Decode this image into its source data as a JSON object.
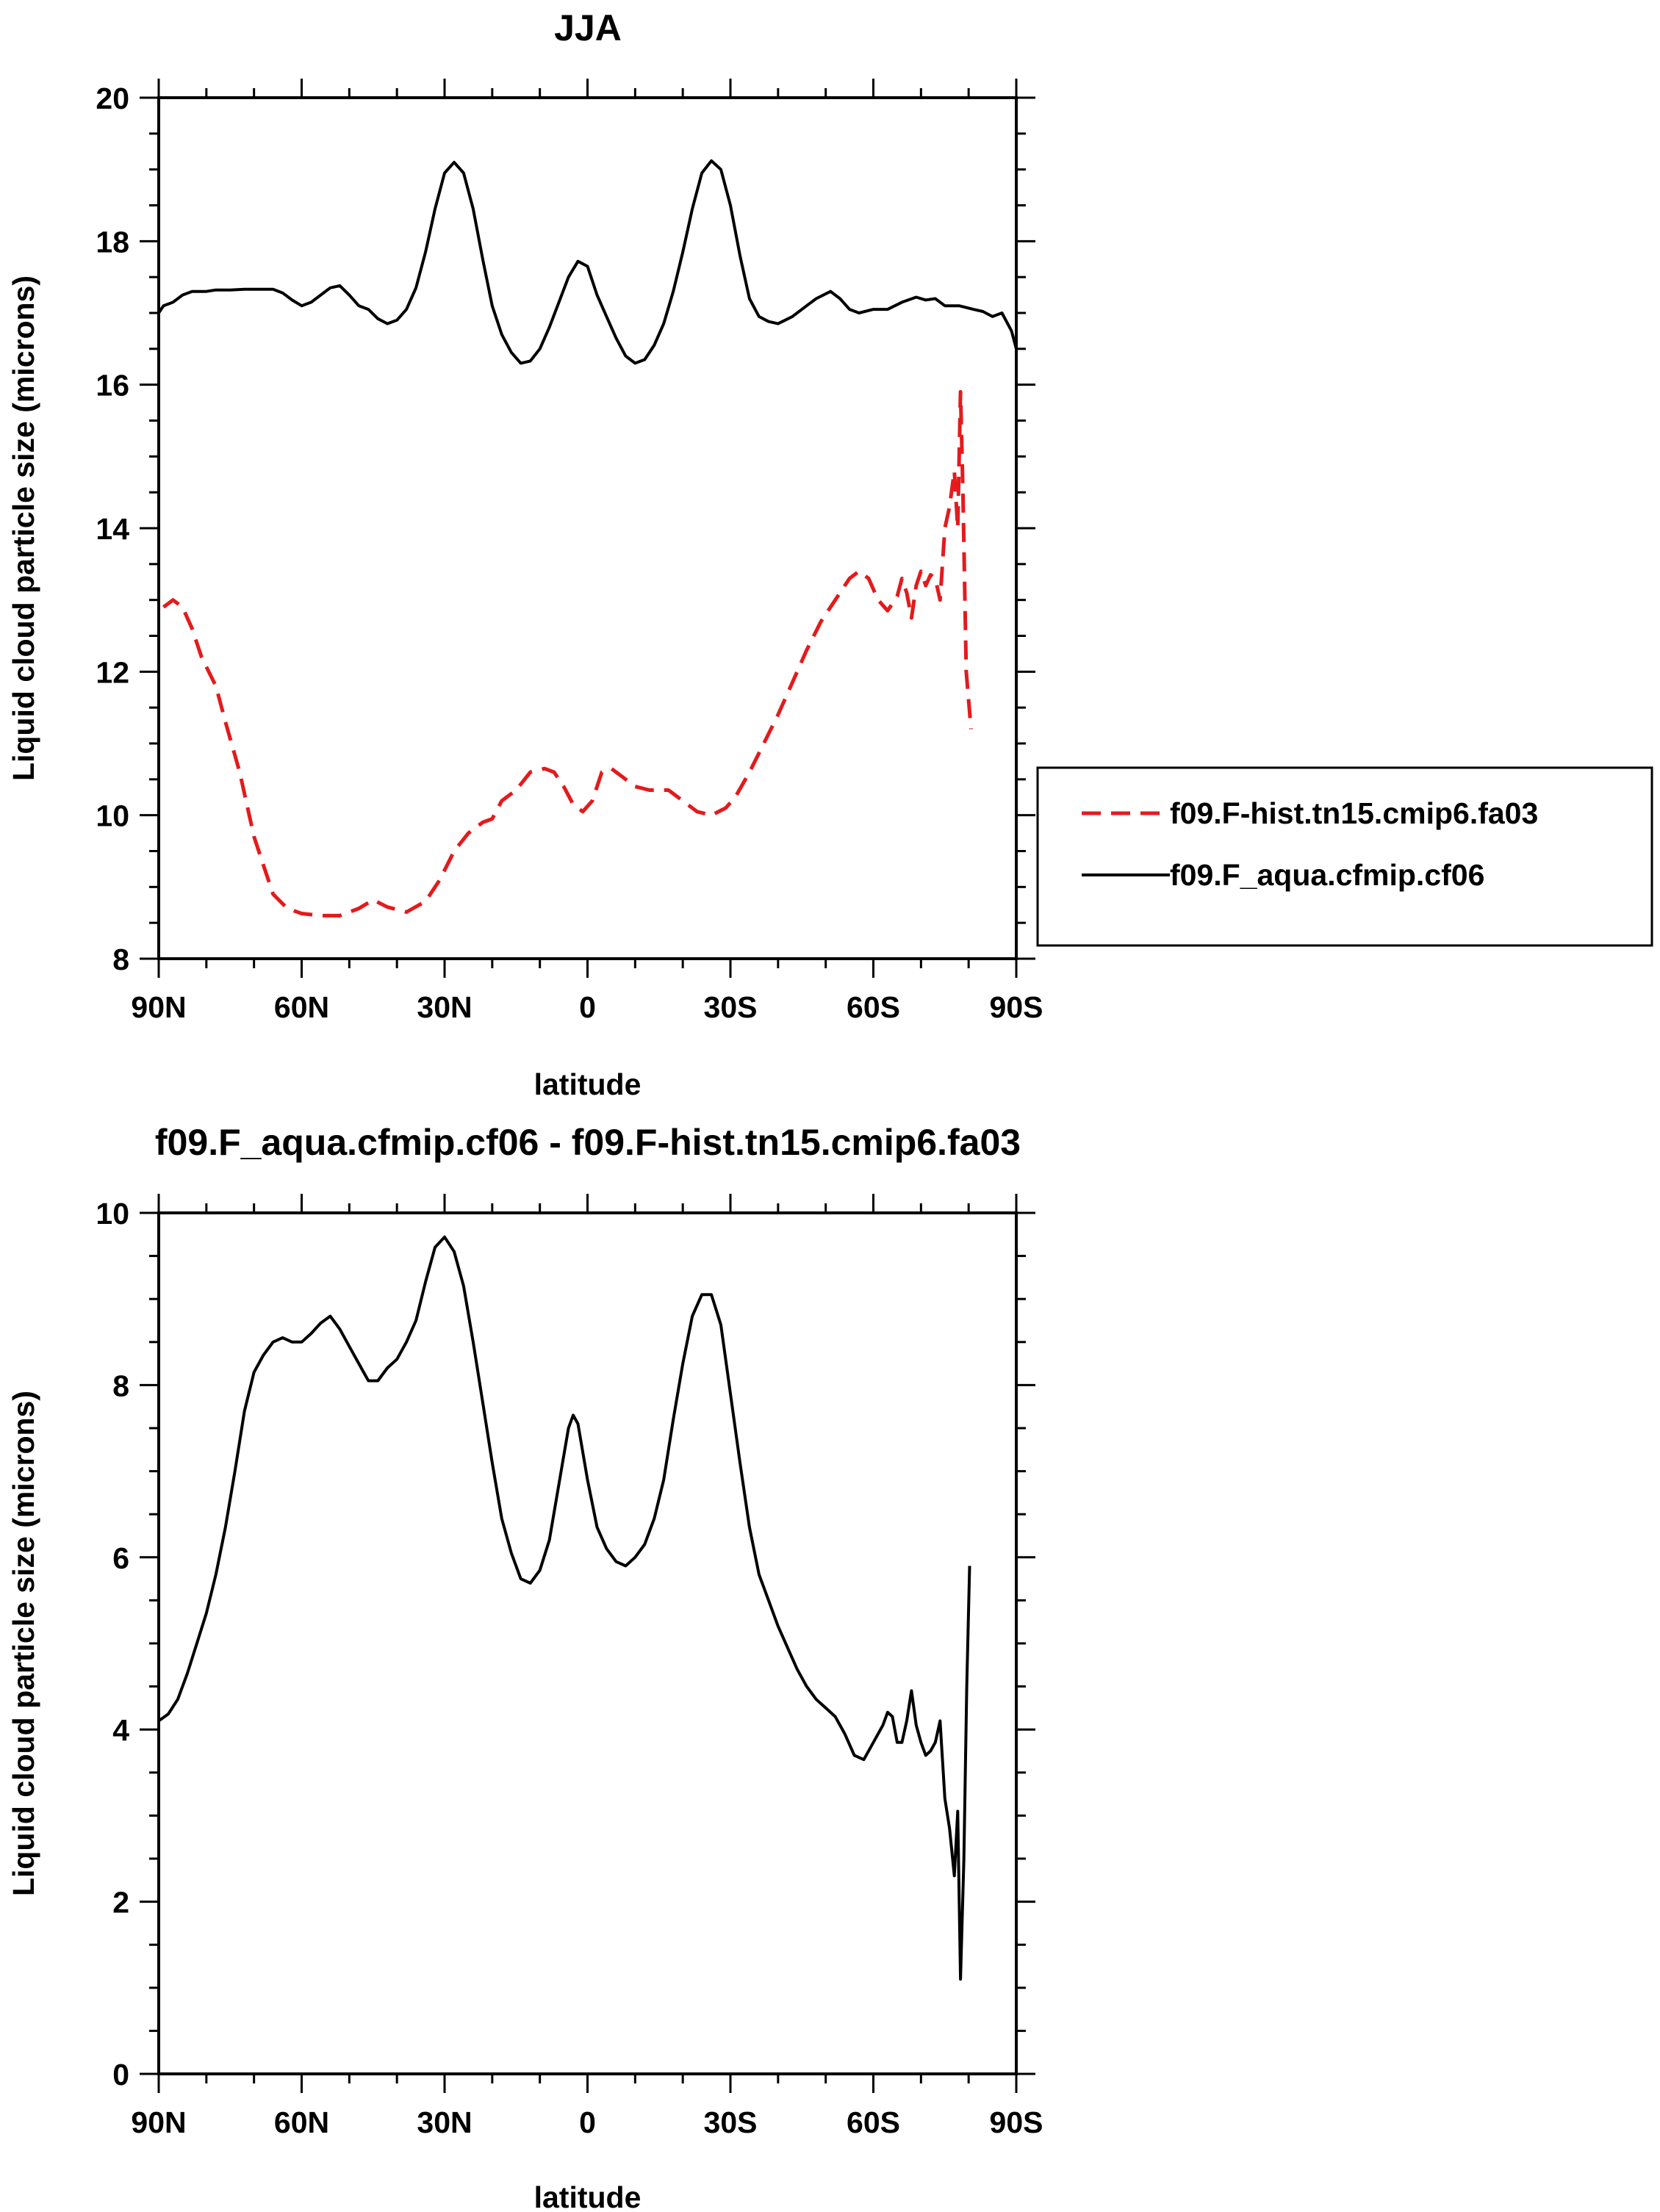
{
  "chart_data": [
    {
      "type": "line",
      "title": "JJA",
      "xlabel": "latitude",
      "ylabel": "Liquid cloud particle size (microns)",
      "xlim": [
        90,
        -90
      ],
      "ylim": [
        8,
        20
      ],
      "yticks": [
        8,
        10,
        12,
        14,
        16,
        18,
        20
      ],
      "xticks": [
        {
          "value": 90,
          "label": "90N"
        },
        {
          "value": 60,
          "label": "60N"
        },
        {
          "value": 30,
          "label": "30N"
        },
        {
          "value": 0,
          "label": "0"
        },
        {
          "value": -30,
          "label": "30S"
        },
        {
          "value": -60,
          "label": "60S"
        },
        {
          "value": -90,
          "label": "90S"
        }
      ],
      "legend": "right",
      "series": [
        {
          "name": "f09.F-hist.tn15.cmip6.fa03",
          "color": "#e41a1c",
          "dash": "dashed",
          "points": [
            [
              89,
              12.9
            ],
            [
              87,
              13.0
            ],
            [
              85,
              12.9
            ],
            [
              83,
              12.6
            ],
            [
              81,
              12.2
            ],
            [
              78,
              11.8
            ],
            [
              76,
              11.3
            ],
            [
              73,
              10.6
            ],
            [
              70,
              9.7
            ],
            [
              68,
              9.3
            ],
            [
              66,
              8.9
            ],
            [
              63,
              8.7
            ],
            [
              60,
              8.63
            ],
            [
              56,
              8.6
            ],
            [
              52,
              8.6
            ],
            [
              48,
              8.7
            ],
            [
              45,
              8.82
            ],
            [
              42,
              8.72
            ],
            [
              38,
              8.65
            ],
            [
              34,
              8.8
            ],
            [
              31,
              9.1
            ],
            [
              28,
              9.5
            ],
            [
              25,
              9.75
            ],
            [
              22,
              9.9
            ],
            [
              20,
              9.95
            ],
            [
              18,
              10.2
            ],
            [
              15,
              10.35
            ],
            [
              12,
              10.6
            ],
            [
              9,
              10.65
            ],
            [
              7,
              10.6
            ],
            [
              5,
              10.4
            ],
            [
              3,
              10.15
            ],
            [
              1,
              10.05
            ],
            [
              -1,
              10.2
            ],
            [
              -3,
              10.6
            ],
            [
              -5,
              10.65
            ],
            [
              -7,
              10.55
            ],
            [
              -10,
              10.4
            ],
            [
              -13,
              10.35
            ],
            [
              -17,
              10.35
            ],
            [
              -20,
              10.2
            ],
            [
              -23,
              10.05
            ],
            [
              -26,
              10.0
            ],
            [
              -29,
              10.1
            ],
            [
              -31,
              10.25
            ],
            [
              -34,
              10.6
            ],
            [
              -37,
              11.0
            ],
            [
              -40,
              11.4
            ],
            [
              -43,
              11.85
            ],
            [
              -46,
              12.3
            ],
            [
              -49,
              12.7
            ],
            [
              -52,
              13.0
            ],
            [
              -55,
              13.3
            ],
            [
              -57,
              13.4
            ],
            [
              -59,
              13.3
            ],
            [
              -61,
              13.0
            ],
            [
              -63,
              12.85
            ],
            [
              -65,
              13.05
            ],
            [
              -66,
              13.3
            ],
            [
              -67,
              13.1
            ],
            [
              -68,
              12.75
            ],
            [
              -69,
              13.2
            ],
            [
              -70,
              13.4
            ],
            [
              -71,
              13.2
            ],
            [
              -72,
              13.35
            ],
            [
              -73,
              13.3
            ],
            [
              -74,
              13.0
            ],
            [
              -75,
              14.0
            ],
            [
              -76,
              14.3
            ],
            [
              -77,
              14.8
            ],
            [
              -77.7,
              14.0
            ],
            [
              -78.3,
              15.9
            ],
            [
              -78.8,
              14.5
            ],
            [
              -79.5,
              12.0
            ],
            [
              -80.5,
              11.2
            ]
          ]
        },
        {
          "name": "f09.F_aqua.cfmip.cf06",
          "color": "#000000",
          "dash": "solid",
          "points": [
            [
              90,
              17.0
            ],
            [
              89,
              17.1
            ],
            [
              87,
              17.15
            ],
            [
              85,
              17.25
            ],
            [
              83,
              17.3
            ],
            [
              80,
              17.3
            ],
            [
              78,
              17.32
            ],
            [
              75,
              17.32
            ],
            [
              72,
              17.33
            ],
            [
              69,
              17.33
            ],
            [
              66,
              17.33
            ],
            [
              64,
              17.28
            ],
            [
              62,
              17.18
            ],
            [
              60,
              17.1
            ],
            [
              58,
              17.15
            ],
            [
              56,
              17.25
            ],
            [
              54,
              17.35
            ],
            [
              52,
              17.38
            ],
            [
              50,
              17.25
            ],
            [
              48,
              17.1
            ],
            [
              46,
              17.05
            ],
            [
              44,
              16.92
            ],
            [
              42,
              16.85
            ],
            [
              40,
              16.9
            ],
            [
              38,
              17.05
            ],
            [
              36,
              17.35
            ],
            [
              34,
              17.85
            ],
            [
              32,
              18.45
            ],
            [
              30,
              18.95
            ],
            [
              28,
              19.1
            ],
            [
              26,
              18.95
            ],
            [
              24,
              18.45
            ],
            [
              22,
              17.75
            ],
            [
              20,
              17.1
            ],
            [
              18,
              16.7
            ],
            [
              16,
              16.45
            ],
            [
              14,
              16.3
            ],
            [
              12,
              16.33
            ],
            [
              10,
              16.5
            ],
            [
              8,
              16.8
            ],
            [
              6,
              17.15
            ],
            [
              4,
              17.5
            ],
            [
              2,
              17.72
            ],
            [
              0,
              17.65
            ],
            [
              -2,
              17.25
            ],
            [
              -4,
              16.95
            ],
            [
              -6,
              16.65
            ],
            [
              -8,
              16.4
            ],
            [
              -10,
              16.3
            ],
            [
              -12,
              16.35
            ],
            [
              -14,
              16.55
            ],
            [
              -16,
              16.85
            ],
            [
              -18,
              17.3
            ],
            [
              -20,
              17.85
            ],
            [
              -22,
              18.45
            ],
            [
              -24,
              18.95
            ],
            [
              -26,
              19.12
            ],
            [
              -28,
              19.0
            ],
            [
              -30,
              18.5
            ],
            [
              -32,
              17.8
            ],
            [
              -34,
              17.2
            ],
            [
              -36,
              16.95
            ],
            [
              -38,
              16.88
            ],
            [
              -40,
              16.85
            ],
            [
              -43,
              16.95
            ],
            [
              -46,
              17.1
            ],
            [
              -48,
              17.2
            ],
            [
              -51,
              17.3
            ],
            [
              -53,
              17.2
            ],
            [
              -55,
              17.05
            ],
            [
              -57,
              17.0
            ],
            [
              -60,
              17.05
            ],
            [
              -63,
              17.05
            ],
            [
              -66,
              17.15
            ],
            [
              -69,
              17.22
            ],
            [
              -71,
              17.18
            ],
            [
              -73,
              17.2
            ],
            [
              -75,
              17.1
            ],
            [
              -78,
              17.1
            ],
            [
              -81,
              17.05
            ],
            [
              -83,
              17.02
            ],
            [
              -85,
              16.95
            ],
            [
              -87,
              17.0
            ],
            [
              -89,
              16.75
            ],
            [
              -90,
              16.5
            ]
          ]
        }
      ]
    },
    {
      "type": "line",
      "title": "f09.F_aqua.cfmip.cf06 - f09.F-hist.tn15.cmip6.fa03",
      "xlabel": "latitude",
      "ylabel": "Liquid cloud particle size (microns)",
      "xlim": [
        90,
        -90
      ],
      "ylim": [
        0,
        10
      ],
      "yticks": [
        0,
        2,
        4,
        6,
        8,
        10
      ],
      "xticks": [
        {
          "value": 90,
          "label": "90N"
        },
        {
          "value": 60,
          "label": "60N"
        },
        {
          "value": 30,
          "label": "30N"
        },
        {
          "value": 0,
          "label": "0"
        },
        {
          "value": -30,
          "label": "30S"
        },
        {
          "value": -60,
          "label": "60S"
        },
        {
          "value": -90,
          "label": "90S"
        }
      ],
      "series": [
        {
          "color": "#000000",
          "dash": "solid",
          "points": [
            [
              90,
              4.1
            ],
            [
              88,
              4.18
            ],
            [
              86,
              4.35
            ],
            [
              84,
              4.65
            ],
            [
              82,
              5.0
            ],
            [
              80,
              5.35
            ],
            [
              78,
              5.8
            ],
            [
              76,
              6.35
            ],
            [
              74,
              7.0
            ],
            [
              72,
              7.7
            ],
            [
              70,
              8.15
            ],
            [
              68,
              8.35
            ],
            [
              66,
              8.5
            ],
            [
              64,
              8.55
            ],
            [
              62,
              8.5
            ],
            [
              60,
              8.5
            ],
            [
              58,
              8.6
            ],
            [
              56,
              8.72
            ],
            [
              54,
              8.8
            ],
            [
              52,
              8.65
            ],
            [
              50,
              8.45
            ],
            [
              48,
              8.25
            ],
            [
              46,
              8.05
            ],
            [
              44,
              8.05
            ],
            [
              42,
              8.2
            ],
            [
              40,
              8.3
            ],
            [
              38,
              8.5
            ],
            [
              36,
              8.75
            ],
            [
              34,
              9.2
            ],
            [
              32,
              9.6
            ],
            [
              30,
              9.72
            ],
            [
              28,
              9.55
            ],
            [
              26,
              9.15
            ],
            [
              24,
              8.5
            ],
            [
              22,
              7.8
            ],
            [
              20,
              7.1
            ],
            [
              18,
              6.45
            ],
            [
              16,
              6.05
            ],
            [
              14,
              5.75
            ],
            [
              12,
              5.7
            ],
            [
              10,
              5.85
            ],
            [
              8,
              6.2
            ],
            [
              6,
              6.85
            ],
            [
              4,
              7.5
            ],
            [
              3,
              7.65
            ],
            [
              2,
              7.55
            ],
            [
              0,
              6.9
            ],
            [
              -2,
              6.35
            ],
            [
              -4,
              6.1
            ],
            [
              -6,
              5.95
            ],
            [
              -8,
              5.9
            ],
            [
              -10,
              6.0
            ],
            [
              -12,
              6.15
            ],
            [
              -14,
              6.45
            ],
            [
              -16,
              6.9
            ],
            [
              -18,
              7.6
            ],
            [
              -20,
              8.25
            ],
            [
              -22,
              8.8
            ],
            [
              -24,
              9.05
            ],
            [
              -26,
              9.05
            ],
            [
              -28,
              8.7
            ],
            [
              -30,
              7.9
            ],
            [
              -32,
              7.1
            ],
            [
              -34,
              6.35
            ],
            [
              -36,
              5.8
            ],
            [
              -38,
              5.5
            ],
            [
              -40,
              5.2
            ],
            [
              -42,
              4.95
            ],
            [
              -44,
              4.7
            ],
            [
              -46,
              4.5
            ],
            [
              -48,
              4.35
            ],
            [
              -50,
              4.25
            ],
            [
              -52,
              4.15
            ],
            [
              -54,
              3.95
            ],
            [
              -56,
              3.7
            ],
            [
              -58,
              3.65
            ],
            [
              -60,
              3.85
            ],
            [
              -62,
              4.05
            ],
            [
              -63,
              4.2
            ],
            [
              -64,
              4.15
            ],
            [
              -65,
              3.85
            ],
            [
              -66,
              3.85
            ],
            [
              -67,
              4.1
            ],
            [
              -68,
              4.45
            ],
            [
              -69,
              4.05
            ],
            [
              -70,
              3.85
            ],
            [
              -71,
              3.7
            ],
            [
              -72,
              3.75
            ],
            [
              -73,
              3.85
            ],
            [
              -74,
              4.1
            ],
            [
              -75,
              3.2
            ],
            [
              -76,
              2.85
            ],
            [
              -77,
              2.3
            ],
            [
              -77.7,
              3.05
            ],
            [
              -78.3,
              1.1
            ],
            [
              -79,
              2.5
            ],
            [
              -79.6,
              4.5
            ],
            [
              -80.2,
              5.9
            ]
          ]
        }
      ]
    }
  ]
}
